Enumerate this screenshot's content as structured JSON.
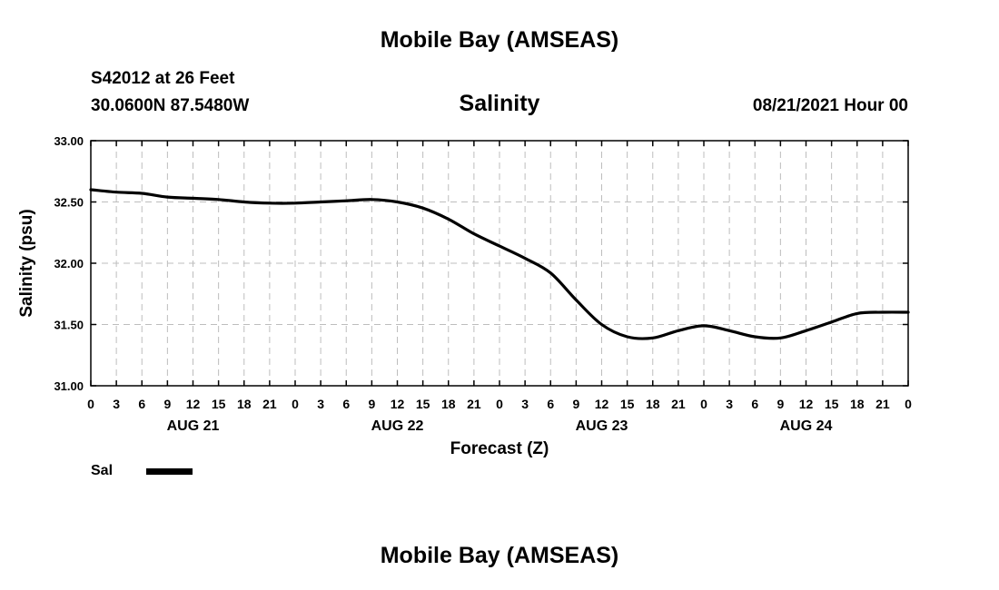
{
  "header": {
    "top_title": "Mobile Bay (AMSEAS)",
    "station": "S42012 at 26 Feet",
    "coords": "30.0600N  87.5480W",
    "run_time": "08/21/2021 Hour 00",
    "bottom_title": "Mobile Bay (AMSEAS)"
  },
  "chart_data": {
    "type": "line",
    "title": "Salinity",
    "xlabel": "Forecast (Z)",
    "ylabel": "Salinity (psu)",
    "ylim": [
      31.0,
      33.0
    ],
    "xlim": [
      0,
      96
    ],
    "y_ticks": [
      "31.00",
      "31.50",
      "32.00",
      "32.50",
      "33.00"
    ],
    "x_tick_labels": [
      "0",
      "3",
      "6",
      "9",
      "12",
      "15",
      "18",
      "21",
      "0",
      "3",
      "6",
      "9",
      "12",
      "15",
      "18",
      "21",
      "0",
      "3",
      "6",
      "9",
      "12",
      "15",
      "18",
      "21",
      "0",
      "3",
      "6",
      "9",
      "12",
      "15",
      "18",
      "21",
      "0"
    ],
    "day_labels": [
      "AUG 21",
      "AUG 22",
      "AUG 23",
      "AUG 24"
    ],
    "grid": true,
    "legend_position": "bottom-left",
    "series": [
      {
        "name": "Sal",
        "color": "#000000",
        "x": [
          0,
          3,
          6,
          9,
          12,
          15,
          18,
          21,
          24,
          27,
          30,
          33,
          36,
          39,
          42,
          45,
          48,
          51,
          54,
          57,
          60,
          63,
          66,
          69,
          72,
          75,
          78,
          81,
          84,
          87,
          90,
          93,
          96
        ],
        "values": [
          32.6,
          32.58,
          32.57,
          32.54,
          32.53,
          32.52,
          32.5,
          32.49,
          32.49,
          32.5,
          32.51,
          32.52,
          32.5,
          32.45,
          32.36,
          32.24,
          32.14,
          32.04,
          31.92,
          31.7,
          31.5,
          31.4,
          31.39,
          31.45,
          31.49,
          31.45,
          31.4,
          31.39,
          31.45,
          31.52,
          31.59,
          31.6,
          31.6
        ]
      }
    ]
  }
}
